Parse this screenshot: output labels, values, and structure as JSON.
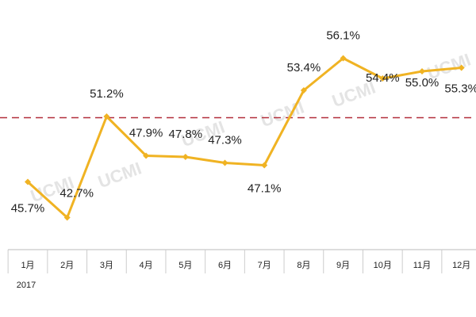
{
  "chart_data": {
    "type": "line",
    "categories": [
      "1月",
      "2月",
      "3月",
      "4月",
      "5月",
      "6月",
      "7月",
      "8月",
      "9月",
      "10月",
      "11月",
      "12月"
    ],
    "year_label": "2017",
    "watermark": "UCMI",
    "series": [
      {
        "color": "#f0b323",
        "values": [
          45.7,
          42.7,
          51.2,
          47.9,
          47.8,
          47.3,
          47.1,
          53.4,
          56.1,
          54.4,
          55.0,
          55.3
        ],
        "value_labels": [
          "45.7%",
          "42.7%",
          "51.2%",
          "47.9%",
          "47.8%",
          "47.3%",
          "47.1%",
          "53.4%",
          "56.1%",
          "54.4%",
          "55.0%",
          "55.3%"
        ]
      }
    ],
    "ylim": [
      40,
      60
    ],
    "reference_line": {
      "value": 51.1,
      "color": "#b22f3a"
    }
  }
}
